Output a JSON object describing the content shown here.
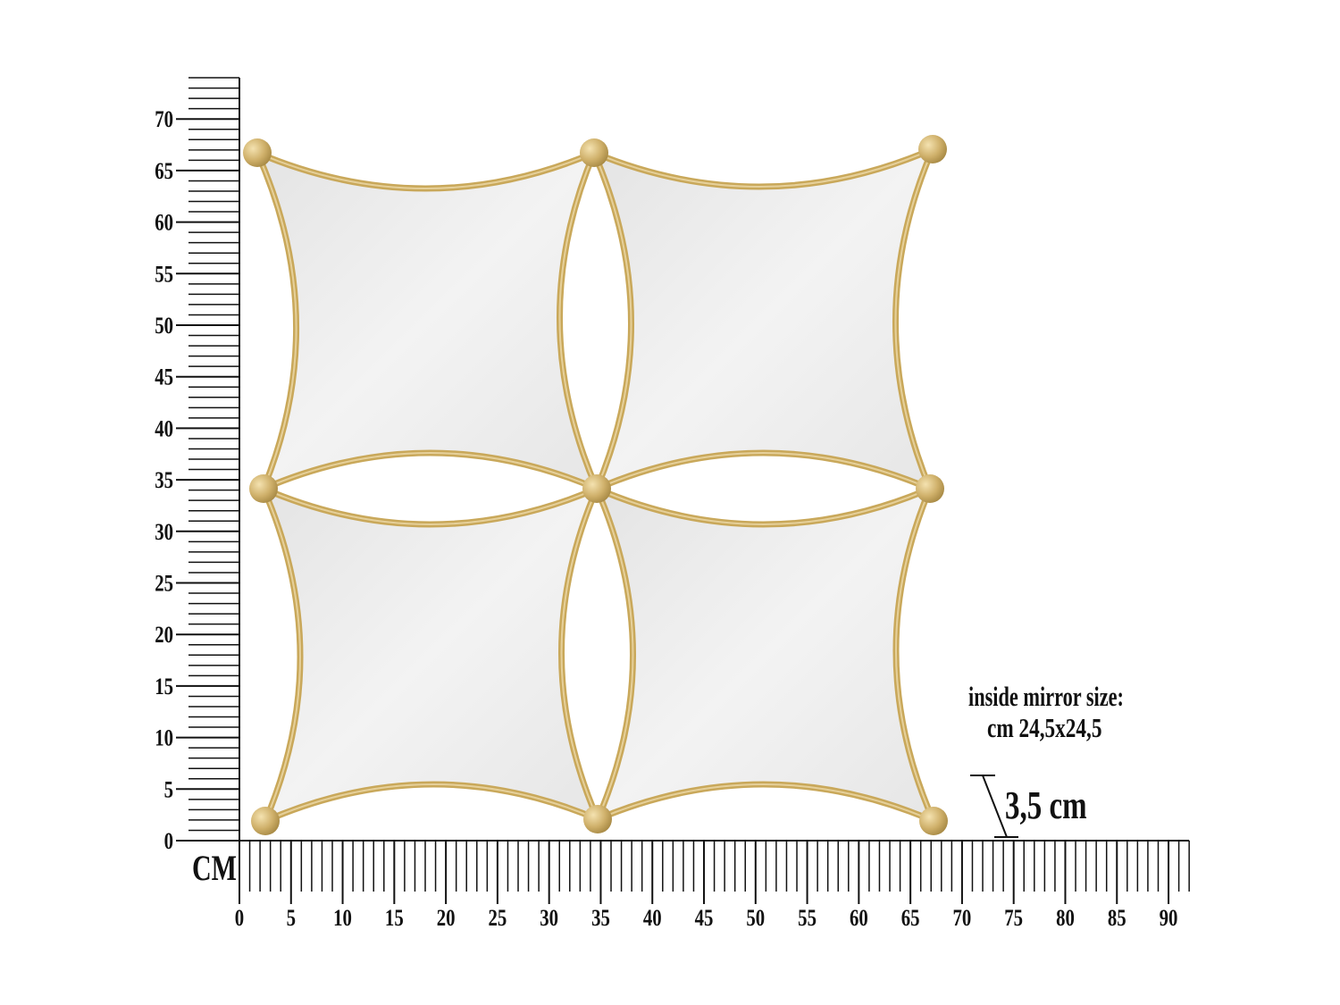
{
  "unit_label": "CM",
  "x_axis": {
    "min": 0,
    "max": 92,
    "major_every": 5,
    "tick_labels": [
      "0",
      "5",
      "10",
      "15",
      "20",
      "25",
      "30",
      "35",
      "40",
      "45",
      "50",
      "55",
      "60",
      "65",
      "70",
      "75",
      "80",
      "85",
      "90"
    ]
  },
  "y_axis": {
    "min": 0,
    "max": 74,
    "major_every": 5,
    "tick_labels": [
      "0",
      "5",
      "10",
      "15",
      "20",
      "25",
      "30",
      "35",
      "40",
      "45",
      "50",
      "55",
      "60",
      "65",
      "70"
    ]
  },
  "annotations": {
    "inside_mirror_line1": "inside mirror size:",
    "inside_mirror_line2": "cm 24,5x24,5",
    "depth": "3,5 cm"
  },
  "colors": {
    "gold": "#c9a85a",
    "gold_light": "#e6d09a",
    "mirror": "#ececec",
    "ink": "#111111"
  }
}
